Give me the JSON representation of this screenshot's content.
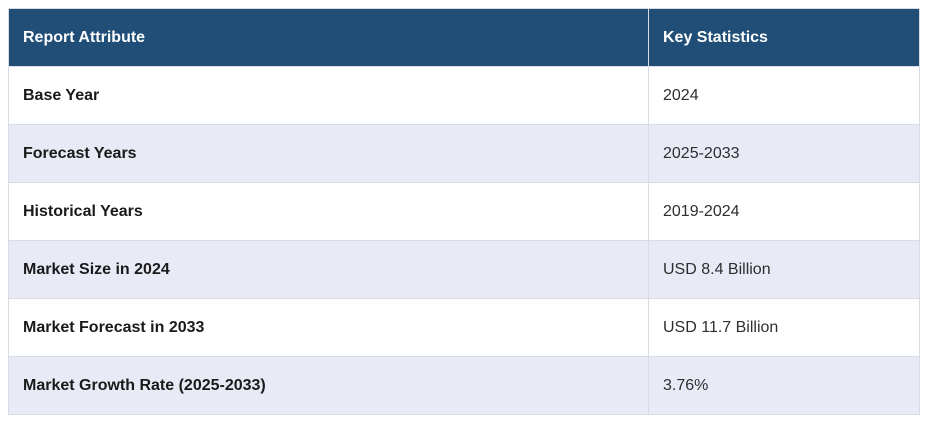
{
  "table": {
    "columns": [
      {
        "label": "Report Attribute"
      },
      {
        "label": "Key Statistics"
      }
    ],
    "rows": [
      {
        "attribute": "Base Year",
        "value": "2024"
      },
      {
        "attribute": "Forecast Years",
        "value": "2025-2033"
      },
      {
        "attribute": "Historical Years",
        "value": "2019-2024"
      },
      {
        "attribute": "Market Size in 2024",
        "value": "USD 8.4 Billion"
      },
      {
        "attribute": "Market Forecast in 2033",
        "value": "USD 11.7 Billion"
      },
      {
        "attribute": "Market Growth Rate (2025-2033)",
        "value": "3.76%"
      }
    ],
    "colors": {
      "header_bg": "#214E77",
      "header_text": "#FFFFFF",
      "row_bg": "#FFFFFF",
      "row_alt_bg": "#E8EAF6",
      "border": "#D9DCE4",
      "label_text": "#1A1A1A",
      "value_text": "#2E2E2E"
    }
  },
  "chart_data": {
    "type": "table",
    "title": "",
    "columns": [
      "Report Attribute",
      "Key Statistics"
    ],
    "rows": [
      [
        "Base Year",
        "2024"
      ],
      [
        "Forecast Years",
        "2025-2033"
      ],
      [
        "Historical Years",
        "2019-2024"
      ],
      [
        "Market Size in 2024",
        "USD 8.4 Billion"
      ],
      [
        "Market Forecast in 2033",
        "USD 11.7 Billion"
      ],
      [
        "Market Growth Rate (2025-2033)",
        "3.76%"
      ]
    ],
    "market_size_2024_usd_billion": 8.4,
    "market_forecast_2033_usd_billion": 11.7,
    "market_growth_rate_percent": 3.76
  }
}
